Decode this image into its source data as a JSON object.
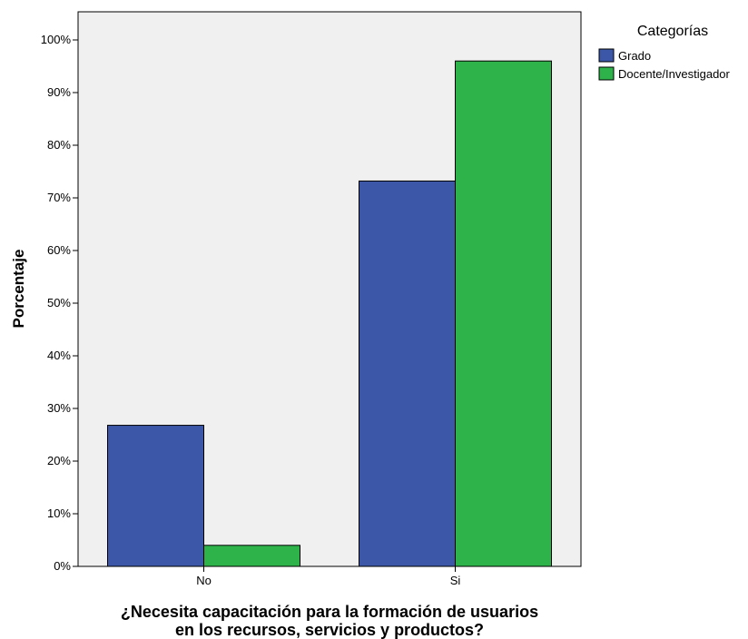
{
  "chart_data": {
    "type": "bar",
    "categories": [
      "No",
      "Si"
    ],
    "series": [
      {
        "name": "Grado",
        "values": [
          26.8,
          73.2
        ],
        "color": "#3c57a8"
      },
      {
        "name": "Docente/Investigador",
        "values": [
          4.0,
          96.0
        ],
        "color": "#2eb34a"
      }
    ],
    "ylabel": "Porcentaje",
    "xlabel_lines": [
      "¿Necesita capacitación para la formación de usuarios",
      "en los recursos, servicios y productos?"
    ],
    "ylim": [
      0,
      100
    ],
    "yticks": [
      "0%",
      "10%",
      "20%",
      "30%",
      "40%",
      "50%",
      "60%",
      "70%",
      "80%",
      "90%",
      "100%"
    ],
    "legend": {
      "title": "Categorías",
      "position": "top-right"
    },
    "grid": false,
    "plot_background": "#f0f0f0"
  }
}
